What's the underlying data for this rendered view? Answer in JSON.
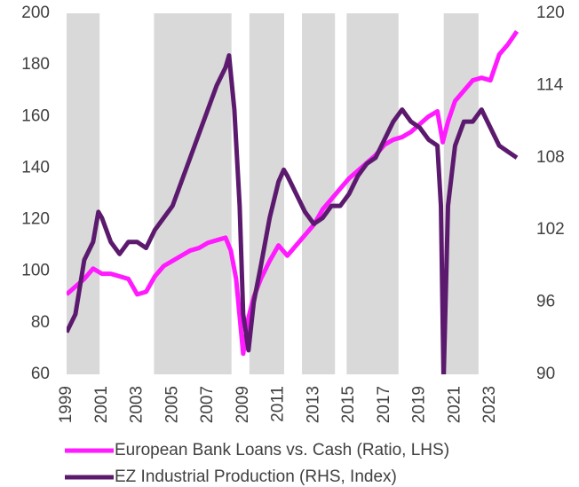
{
  "chart_data": {
    "type": "line",
    "xlim": [
      1999,
      2024.8
    ],
    "xticks": [
      1999,
      2001,
      2003,
      2005,
      2007,
      2009,
      2011,
      2013,
      2015,
      2017,
      2019,
      2021,
      2023
    ],
    "ylim": [
      60,
      200
    ],
    "yticks": [
      60,
      80,
      100,
      120,
      140,
      160,
      180,
      200
    ],
    "y2lim": [
      90,
      120
    ],
    "y2ticks": [
      90,
      96,
      102,
      108,
      114,
      120
    ],
    "shaded_periods": [
      [
        1999,
        2000.87
      ],
      [
        2003.95,
        2008.34
      ],
      [
        2009.35,
        2011.32
      ],
      [
        2012.33,
        2014.2
      ],
      [
        2014.86,
        2017.8
      ],
      [
        2020.36,
        2022.33
      ]
    ],
    "shade_color": "#d9d9d9",
    "series": [
      {
        "name": "European Bank Loans vs. Cash (Ratio, LHS)",
        "color": "#ff1aff",
        "axis": "y",
        "x": [
          1999,
          1999.5,
          2000,
          2000.5,
          2001,
          2001.5,
          2002,
          2002.5,
          2003,
          2003.5,
          2004,
          2004.5,
          2005,
          2005.5,
          2006,
          2006.5,
          2007,
          2007.5,
          2008,
          2008.3,
          2008.6,
          2009,
          2009.3,
          2009.6,
          2010,
          2010.5,
          2011,
          2011.5,
          2012,
          2012.5,
          2013,
          2013.5,
          2014,
          2014.5,
          2015,
          2015.5,
          2016,
          2016.5,
          2017,
          2017.5,
          2018,
          2018.5,
          2019,
          2019.5,
          2020,
          2020.3,
          2020.6,
          2021,
          2021.5,
          2022,
          2022.5,
          2023,
          2023.5,
          2024,
          2024.5
        ],
        "values": [
          91,
          94,
          97,
          101,
          99,
          99,
          98,
          97,
          91,
          92,
          98,
          102,
          104,
          106,
          108,
          109,
          111,
          112,
          113,
          108,
          97,
          68,
          82,
          90,
          97,
          104,
          110,
          106,
          110,
          114,
          118,
          124,
          128,
          132,
          136,
          139,
          142,
          145,
          149,
          151,
          152,
          154,
          157,
          160,
          162,
          150,
          158,
          166,
          170,
          174,
          175,
          174,
          184,
          188,
          193
        ]
      },
      {
        "name": "EZ Industrial Production (RHS, Index)",
        "color": "#5c1a6e",
        "axis": "y2",
        "x": [
          1999,
          1999.5,
          2000,
          2000.5,
          2000.8,
          2001,
          2001.5,
          2002,
          2002.5,
          2003,
          2003.5,
          2004,
          2004.5,
          2005,
          2005.5,
          2006,
          2006.5,
          2007,
          2007.5,
          2008,
          2008.2,
          2008.5,
          2008.8,
          2009,
          2009.3,
          2009.6,
          2010,
          2010.5,
          2011,
          2011.3,
          2011.5,
          2012,
          2012.5,
          2013,
          2013.5,
          2014,
          2014.5,
          2015,
          2015.5,
          2016,
          2016.5,
          2017,
          2017.5,
          2018,
          2018.5,
          2019,
          2019.5,
          2020,
          2020.2,
          2020.35,
          2020.6,
          2021,
          2021.5,
          2022,
          2022.5,
          2023,
          2023.5,
          2024,
          2024.5
        ],
        "values": [
          93.5,
          95,
          99.5,
          101,
          103.5,
          103,
          101,
          100,
          101,
          101,
          100.5,
          102,
          103,
          104,
          106,
          108,
          110,
          112,
          114,
          115.5,
          116.5,
          112,
          104,
          95,
          92,
          96,
          99,
          103,
          106,
          107,
          106.5,
          105,
          103.5,
          102.5,
          103,
          104,
          104,
          105,
          106.5,
          107.5,
          108,
          109.5,
          111,
          112,
          111,
          110.5,
          109.5,
          109,
          104,
          89.5,
          104,
          109,
          111,
          111,
          112,
          110.5,
          109,
          108.5,
          108
        ]
      }
    ]
  }
}
